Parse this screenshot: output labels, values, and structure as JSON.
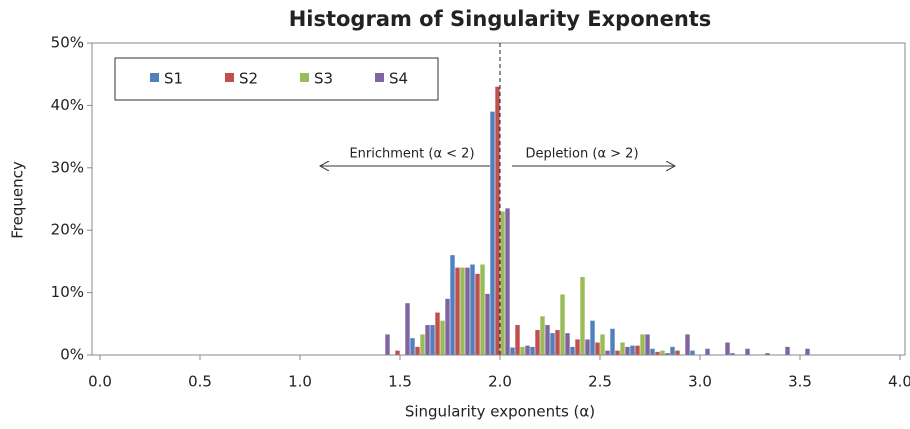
{
  "chart_data": {
    "type": "grouped_histogram",
    "title": "Histogram of Singularity Exponents",
    "x_label": "Singularity exponents (α)",
    "y_label": "Frequency",
    "x": [
      1.4,
      1.5,
      1.6,
      1.7,
      1.8,
      1.9,
      2.0,
      2.1,
      2.2,
      2.3,
      2.4,
      2.5,
      2.6,
      2.7,
      2.8,
      2.9,
      3.0,
      3.1,
      3.2,
      3.3,
      3.4,
      3.5
    ],
    "series": [
      {
        "name": "S1",
        "color": "#4f81bd",
        "values": [
          0,
          0,
          2.7,
          4.8,
          16,
          14.5,
          39,
          1.2,
          1.3,
          3.5,
          1.3,
          5.5,
          4.2,
          1.5,
          1,
          1.3,
          0.7,
          0,
          0.3,
          0,
          0,
          0
        ]
      },
      {
        "name": "S2",
        "color": "#c0504d",
        "values": [
          0,
          0.7,
          1.3,
          6.8,
          14,
          13,
          43,
          4.8,
          4,
          4,
          2.5,
          2,
          0.7,
          1.5,
          0.5,
          0.7,
          0,
          0,
          0,
          0,
          0,
          0
        ]
      },
      {
        "name": "S3",
        "color": "#9bbb59",
        "values": [
          0,
          0,
          3.3,
          5.5,
          14,
          14.5,
          23,
          1.3,
          6.2,
          9.7,
          12.5,
          3.3,
          2,
          3.3,
          0.7,
          0,
          0,
          0,
          0,
          0,
          0,
          0
        ]
      },
      {
        "name": "S4",
        "color": "#8064a2",
        "values": [
          3.3,
          8.3,
          4.8,
          9,
          14,
          9.8,
          23.5,
          1.5,
          4.8,
          3.5,
          2.5,
          0.7,
          1.3,
          3.3,
          0.3,
          3.3,
          1,
          2,
          1,
          0.3,
          1.3,
          1
        ]
      }
    ],
    "bin_width": 0.1,
    "reference_line": 2,
    "annotations": [
      "Enrichment (α < 2)",
      "Depletion (α > 2)"
    ],
    "xlim": [
      0,
      4
    ],
    "xticks": [
      {
        "value": 0,
        "label": "0.0"
      },
      {
        "value": 0.5,
        "label": "0.5"
      },
      {
        "value": 1,
        "label": "1.0"
      },
      {
        "value": 1.5,
        "label": "1.5"
      },
      {
        "value": 2,
        "label": "2.0"
      },
      {
        "value": 2.5,
        "label": "2.5"
      },
      {
        "value": 3,
        "label": "3.0"
      },
      {
        "value": 3.5,
        "label": "3.5"
      },
      {
        "value": 4,
        "label": "4.0"
      }
    ],
    "ylim": [
      0,
      50
    ],
    "yticks": [
      {
        "value": 0,
        "label": "0%"
      },
      {
        "value": 10,
        "label": "10%"
      },
      {
        "value": 20,
        "label": "20%"
      },
      {
        "value": 30,
        "label": "30%"
      },
      {
        "value": 40,
        "label": "40%"
      },
      {
        "value": 50,
        "label": "50%"
      }
    ],
    "legend": "top-left"
  }
}
